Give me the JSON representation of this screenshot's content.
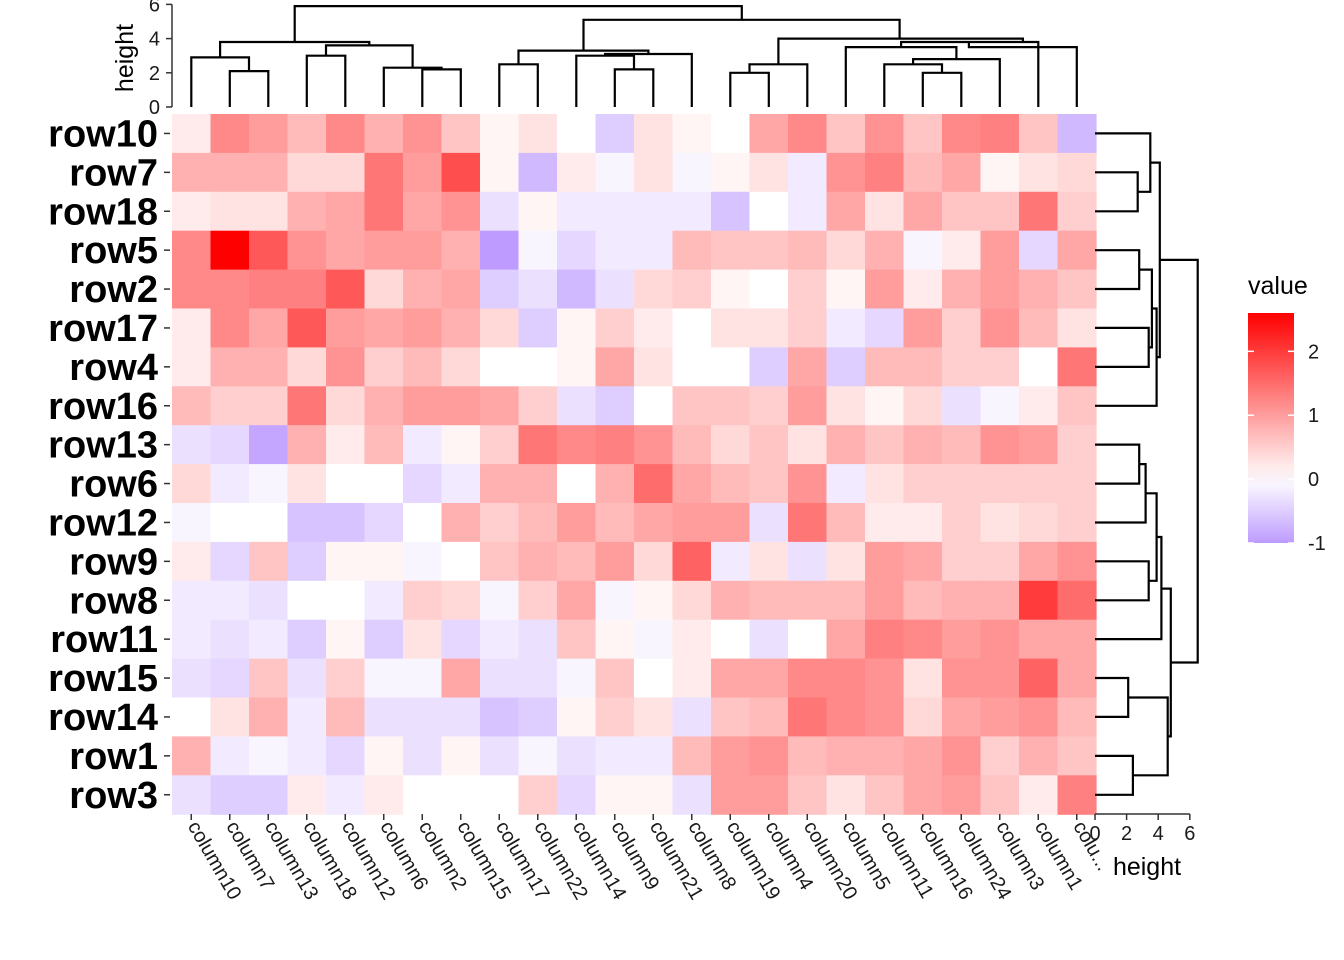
{
  "chart_data": {
    "type": "heatmap",
    "rows": [
      "row10",
      "row7",
      "row18",
      "row5",
      "row2",
      "row17",
      "row4",
      "row16",
      "row13",
      "row6",
      "row12",
      "row9",
      "row8",
      "row11",
      "row15",
      "row14",
      "row1",
      "row3"
    ],
    "columns": [
      "column10",
      "column7",
      "column13",
      "column18",
      "column12",
      "column6",
      "column2",
      "column15",
      "column17",
      "column22",
      "column14",
      "column9",
      "column21",
      "column8",
      "column19",
      "column4",
      "column20",
      "column5",
      "column11",
      "column16",
      "column24",
      "column3",
      "column1",
      "colu..."
    ],
    "values": [
      [
        0.2,
        1.2,
        1.0,
        0.7,
        1.2,
        0.8,
        1.1,
        0.6,
        0.1,
        0.3,
        0.0,
        -0.5,
        0.3,
        0.1,
        0.0,
        0.9,
        1.2,
        0.6,
        1.1,
        0.6,
        1.2,
        1.3,
        0.6,
        -0.7
      ],
      [
        0.8,
        0.8,
        0.8,
        0.4,
        0.4,
        1.4,
        1.0,
        1.8,
        0.1,
        -0.7,
        0.2,
        -0.1,
        0.3,
        -0.1,
        0.1,
        0.3,
        -0.2,
        1.1,
        1.3,
        0.7,
        0.9,
        0.1,
        0.3,
        0.4
      ],
      [
        0.2,
        0.3,
        0.3,
        0.8,
        0.9,
        1.4,
        0.9,
        1.1,
        -0.3,
        0.1,
        -0.2,
        -0.2,
        -0.2,
        -0.2,
        -0.6,
        0.0,
        -0.2,
        0.9,
        0.3,
        0.9,
        0.6,
        0.6,
        1.4,
        0.5
      ],
      [
        1.2,
        2.6,
        1.7,
        1.1,
        0.9,
        1.0,
        1.0,
        0.8,
        -1.0,
        -0.1,
        -0.4,
        -0.2,
        -0.2,
        0.7,
        0.6,
        0.6,
        0.7,
        0.4,
        0.8,
        -0.1,
        0.2,
        1.0,
        -0.4,
        0.9
      ],
      [
        1.2,
        1.2,
        1.3,
        1.3,
        1.7,
        0.4,
        0.8,
        0.9,
        -0.5,
        -0.3,
        -0.7,
        -0.3,
        0.4,
        0.5,
        0.1,
        0.0,
        0.5,
        0.1,
        1.0,
        0.2,
        0.8,
        1.0,
        0.8,
        0.6
      ],
      [
        0.2,
        1.2,
        0.9,
        1.7,
        1.0,
        0.9,
        1.0,
        0.8,
        0.4,
        -0.5,
        0.1,
        0.5,
        0.2,
        0.0,
        0.3,
        0.3,
        0.5,
        -0.2,
        -0.4,
        1.0,
        0.5,
        1.1,
        0.7,
        0.3
      ],
      [
        0.2,
        0.8,
        0.8,
        0.4,
        1.1,
        0.5,
        0.7,
        0.4,
        0.0,
        0.0,
        0.1,
        0.9,
        0.3,
        0.0,
        0.0,
        -0.5,
        0.9,
        -0.5,
        0.7,
        0.7,
        0.5,
        0.5,
        0.0,
        1.4
      ],
      [
        0.7,
        0.5,
        0.5,
        1.4,
        0.4,
        0.8,
        1.0,
        1.0,
        0.9,
        0.5,
        -0.3,
        -0.5,
        0.0,
        0.6,
        0.6,
        0.5,
        1.0,
        0.3,
        0.1,
        0.4,
        -0.3,
        -0.1,
        0.2,
        0.6
      ],
      [
        -0.3,
        -0.4,
        -0.9,
        0.8,
        0.2,
        0.7,
        -0.2,
        0.1,
        0.5,
        1.4,
        1.2,
        1.3,
        1.1,
        0.7,
        0.4,
        0.6,
        0.3,
        0.8,
        0.6,
        0.8,
        0.7,
        1.1,
        1.0,
        0.5
      ],
      [
        0.4,
        -0.2,
        -0.1,
        0.3,
        0.0,
        0.0,
        -0.4,
        -0.2,
        0.8,
        0.8,
        0.0,
        0.8,
        1.5,
        0.9,
        0.7,
        0.6,
        1.1,
        -0.2,
        0.3,
        0.5,
        0.5,
        0.5,
        0.5,
        0.5
      ],
      [
        -0.1,
        0.0,
        0.0,
        -0.6,
        -0.6,
        -0.4,
        0.0,
        0.8,
        0.5,
        0.7,
        1.0,
        0.7,
        0.9,
        1.0,
        1.0,
        -0.3,
        1.4,
        0.7,
        0.2,
        0.2,
        0.5,
        0.3,
        0.4,
        0.5
      ],
      [
        0.2,
        -0.4,
        0.6,
        -0.5,
        0.1,
        0.1,
        -0.1,
        0.0,
        0.6,
        0.8,
        0.7,
        1.0,
        0.4,
        1.6,
        -0.2,
        0.3,
        -0.3,
        0.3,
        1.0,
        0.9,
        0.5,
        0.5,
        0.9,
        1.1
      ],
      [
        -0.2,
        -0.2,
        -0.3,
        0.0,
        0.0,
        -0.2,
        0.5,
        0.4,
        -0.1,
        0.5,
        0.9,
        -0.1,
        0.1,
        0.4,
        0.8,
        0.7,
        0.7,
        0.7,
        1.0,
        0.7,
        0.8,
        0.8,
        2.0,
        1.5
      ],
      [
        -0.2,
        -0.3,
        -0.2,
        -0.5,
        0.1,
        -0.5,
        0.3,
        -0.4,
        -0.2,
        -0.3,
        0.6,
        0.1,
        -0.1,
        0.2,
        0.0,
        -0.3,
        0.0,
        0.9,
        1.3,
        1.2,
        1.0,
        1.1,
        0.9,
        0.9
      ],
      [
        -0.3,
        -0.4,
        0.6,
        -0.3,
        0.5,
        -0.1,
        -0.1,
        0.9,
        -0.3,
        -0.3,
        -0.1,
        0.6,
        0.0,
        0.2,
        0.9,
        0.9,
        1.2,
        1.2,
        1.1,
        0.3,
        1.1,
        1.1,
        1.6,
        0.9
      ],
      [
        0.0,
        0.3,
        0.8,
        -0.2,
        0.7,
        -0.3,
        -0.3,
        -0.3,
        -0.6,
        -0.5,
        0.1,
        0.5,
        0.3,
        -0.3,
        0.6,
        0.7,
        1.4,
        1.2,
        1.1,
        0.4,
        0.9,
        1.0,
        1.1,
        0.7
      ],
      [
        0.8,
        -0.2,
        -0.1,
        -0.2,
        -0.4,
        0.1,
        -0.3,
        0.1,
        -0.3,
        -0.1,
        -0.3,
        -0.2,
        -0.2,
        0.7,
        1.0,
        1.1,
        0.7,
        0.8,
        0.8,
        0.9,
        1.1,
        0.5,
        0.8,
        0.6
      ],
      [
        -0.3,
        -0.5,
        -0.5,
        0.2,
        -0.2,
        0.2,
        0.0,
        0.0,
        0.0,
        0.5,
        -0.4,
        0.1,
        0.1,
        -0.3,
        1.0,
        1.0,
        0.6,
        0.3,
        0.6,
        0.9,
        1.0,
        0.6,
        0.2,
        1.3
      ]
    ],
    "color_scale": {
      "low": "#bd9bff",
      "mid": "#ffffff",
      "high": "#ff0000",
      "min": -1,
      "max": 2.6
    },
    "legend": {
      "title": "value",
      "ticks": [
        -1,
        0,
        1,
        2
      ],
      "tick_labels": [
        "-1",
        "0",
        "1",
        "2"
      ]
    },
    "top_dendrogram": {
      "axis_title": "height",
      "ticks": [
        0,
        2,
        4,
        6
      ],
      "tick_labels": [
        "0",
        "2",
        "4",
        "6"
      ],
      "ylim": [
        0,
        6
      ],
      "segments": [
        [
          1.0,
          2.2,
          1.0,
          2.2,
          2.0,
          2.2
        ],
        [
          2.2,
          1.5,
          2.2,
          1.5,
          2.5,
          1.5
        ],
        [
          3.0,
          3.0,
          3.0,
          3.0,
          4.0,
          3.0
        ],
        [
          6.0,
          2.2,
          6.0,
          2.2,
          7.0,
          2.2
        ],
        [
          6.5,
          2.2,
          6.5,
          2.0,
          6.0,
          2.0
        ],
        [
          5.0,
          2.2,
          5.0,
          2.2,
          6.0,
          2.2
        ],
        [
          3.5,
          3.0,
          3.5,
          3.5,
          5.5,
          3.5
        ],
        [
          1.6,
          3.5,
          1.6,
          3.8,
          4.5,
          3.8
        ],
        [
          8.0,
          2.5,
          8.0,
          2.5,
          9.0,
          2.5
        ],
        [
          11.0,
          2.5,
          11.0,
          2.5,
          12.0,
          2.5
        ],
        [
          10.0,
          3.0,
          10.0,
          3.0,
          13.0,
          3.0
        ],
        [
          8.5,
          3.3,
          8.5,
          3.3,
          12.5,
          3.3
        ],
        [
          14.0,
          2.0,
          14.0,
          2.0,
          15.0,
          2.0
        ],
        [
          17.0,
          2.5,
          17.0,
          2.5,
          18.0,
          2.5
        ],
        [
          19.0,
          2.5,
          19.0,
          2.5,
          21.0,
          2.5
        ],
        [
          20.0,
          2.0,
          20.0,
          2.0,
          21.0,
          2.0
        ],
        [
          19.5,
          2.8,
          19.5,
          2.8,
          22.0,
          2.8
        ],
        [
          20.0,
          3.5,
          20.0,
          3.5,
          23.0,
          3.5
        ],
        [
          17.5,
          3.8,
          17.5,
          3.8,
          22.0,
          3.8
        ],
        [
          14.5,
          4.2,
          14.5,
          4.2,
          20.0,
          4.2
        ],
        [
          10.5,
          5.1,
          10.5,
          5.1,
          18.0,
          5.1
        ],
        [
          3.0,
          5.9,
          3.0,
          5.9,
          15.0,
          5.9
        ]
      ]
    },
    "right_dendrogram": {
      "axis_title": "height",
      "ticks": [
        0,
        2,
        4,
        6
      ],
      "tick_labels": [
        "0",
        "2",
        "4",
        "6"
      ],
      "xlim": [
        0,
        6
      ]
    }
  }
}
